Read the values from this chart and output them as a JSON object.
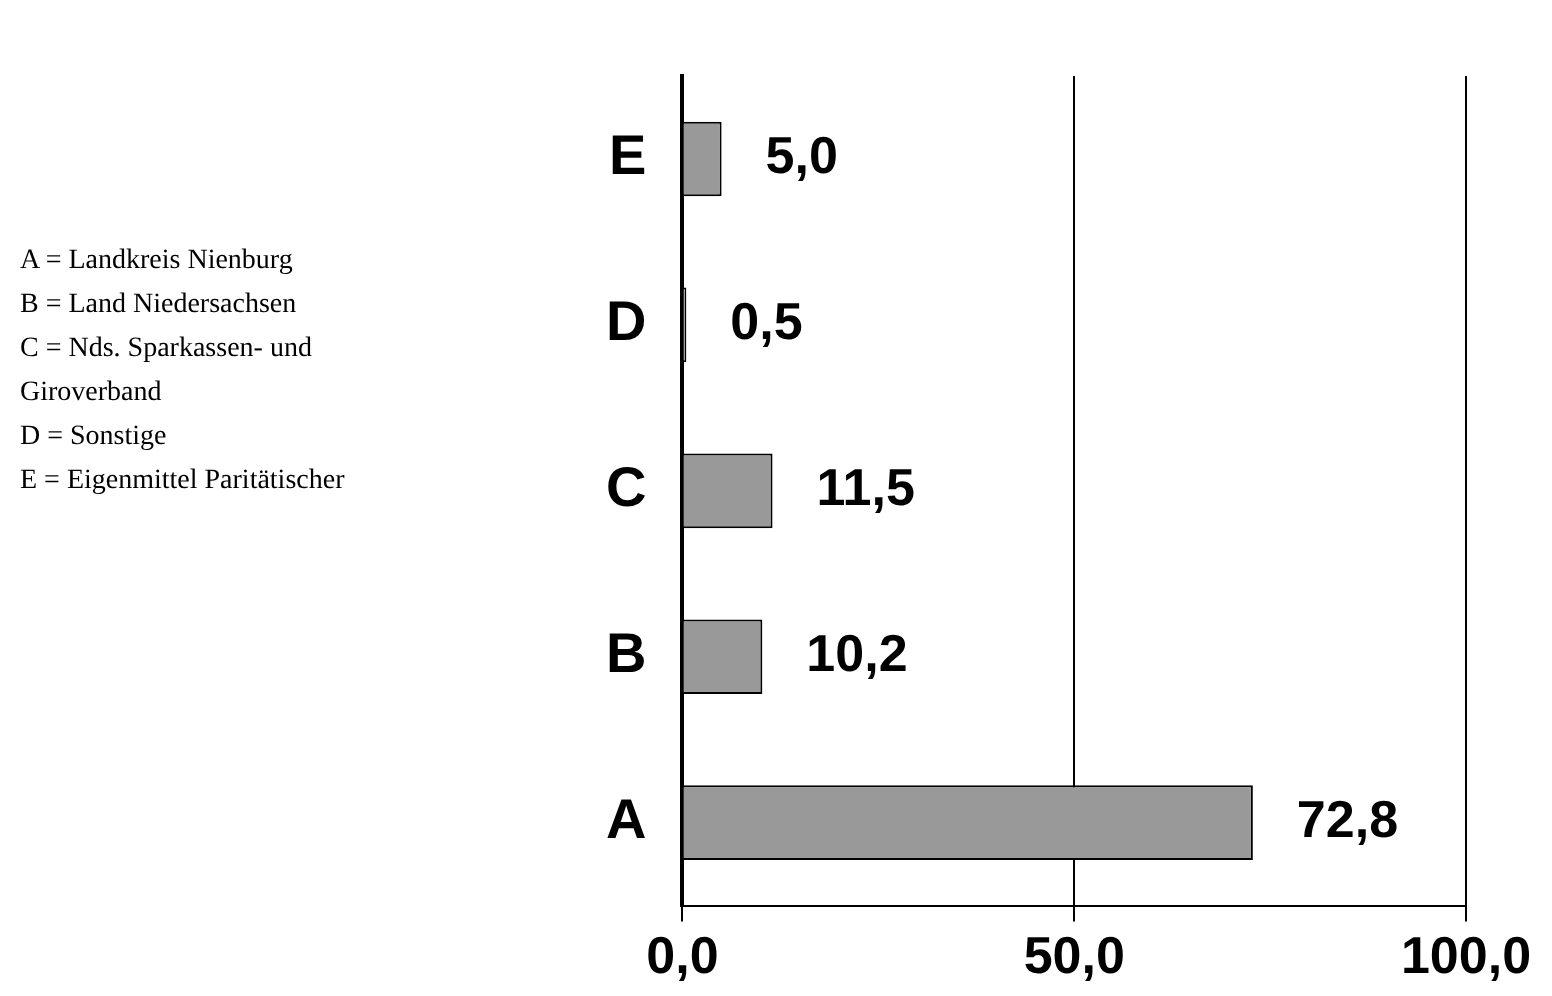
{
  "chart_data": {
    "type": "bar",
    "orientation": "horizontal",
    "categories": [
      "E",
      "D",
      "C",
      "B",
      "A"
    ],
    "values": [
      5.0,
      0.5,
      11.5,
      10.2,
      72.8
    ],
    "value_labels": [
      "5,0",
      "0,5",
      "11,5",
      "10,2",
      "72,8"
    ],
    "color": "#999999",
    "xlim": [
      0,
      100
    ],
    "xticks": [
      {
        "value": 0,
        "label": "0,0"
      },
      {
        "value": 50,
        "label": "50,0"
      },
      {
        "value": 100,
        "label": "100,0"
      }
    ],
    "grid": "x",
    "annotations": [
      "A = Landkreis Nienburg",
      "B  = Land Niedersachsen",
      "C = Nds. Sparkassen- und Giroverband",
      "D = Sonstige",
      "E = Eigenmittel Paritätischer"
    ]
  }
}
